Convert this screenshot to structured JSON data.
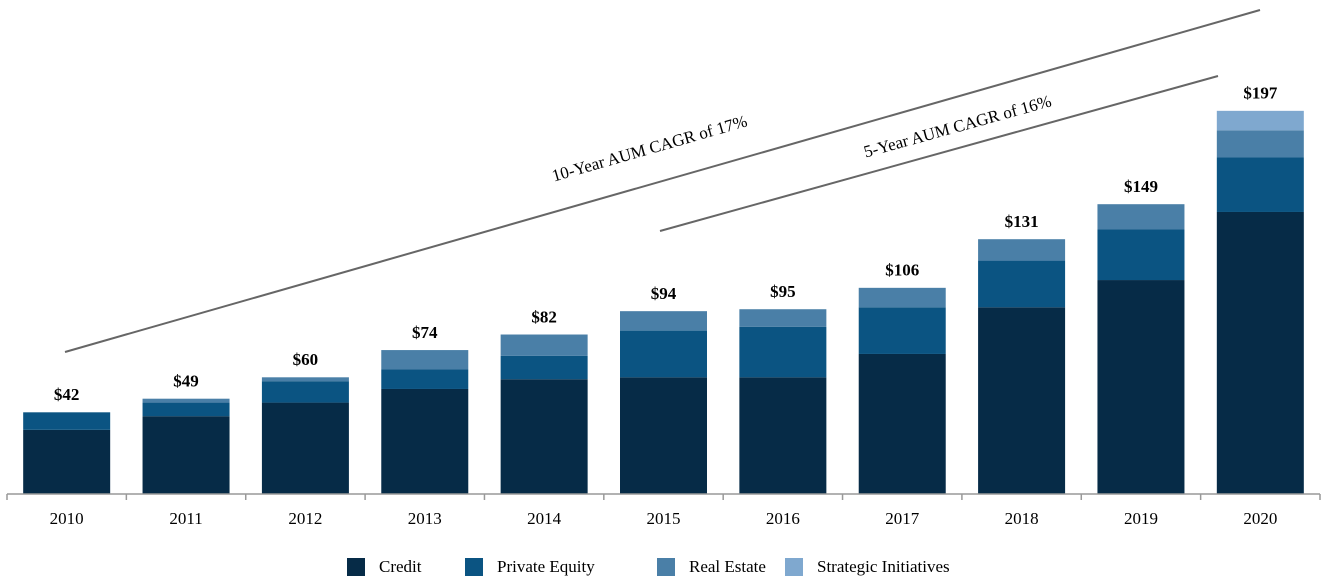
{
  "chart_data": {
    "type": "stacked_bar",
    "categories": [
      "2010",
      "2011",
      "2012",
      "2013",
      "2014",
      "2015",
      "2016",
      "2017",
      "2018",
      "2019",
      "2020"
    ],
    "series": [
      {
        "name": "Credit",
        "color": "#062b47",
        "values": [
          33,
          40,
          47,
          54,
          59,
          60,
          60,
          72,
          96,
          110,
          145
        ]
      },
      {
        "name": "Private Equity",
        "color": "#0b5482",
        "values": [
          9,
          7,
          11,
          10,
          12,
          24,
          26,
          24,
          24,
          26,
          28
        ]
      },
      {
        "name": "Real Estate",
        "color": "#4a7fa7",
        "values": [
          0,
          2,
          2,
          10,
          11,
          10,
          9,
          10,
          11,
          13,
          14
        ]
      },
      {
        "name": "Strategic Initiatives",
        "color": "#7fa8cf",
        "values": [
          0,
          0,
          0,
          0,
          0,
          0,
          0,
          0,
          0,
          0,
          10
        ]
      }
    ],
    "totals": {
      "values": [
        42,
        49,
        60,
        74,
        82,
        94,
        95,
        106,
        131,
        149,
        197
      ],
      "value_labels": [
        "$42",
        "$49",
        "$60",
        "$74",
        "$82",
        "$94",
        "$95",
        "$106",
        "$131",
        "$149",
        "$197"
      ]
    },
    "annotations": [
      "10-Year AUM CAGR of 17%",
      "5-Year AUM CAGR of 16%"
    ],
    "ylim": [
      0,
      200
    ]
  }
}
